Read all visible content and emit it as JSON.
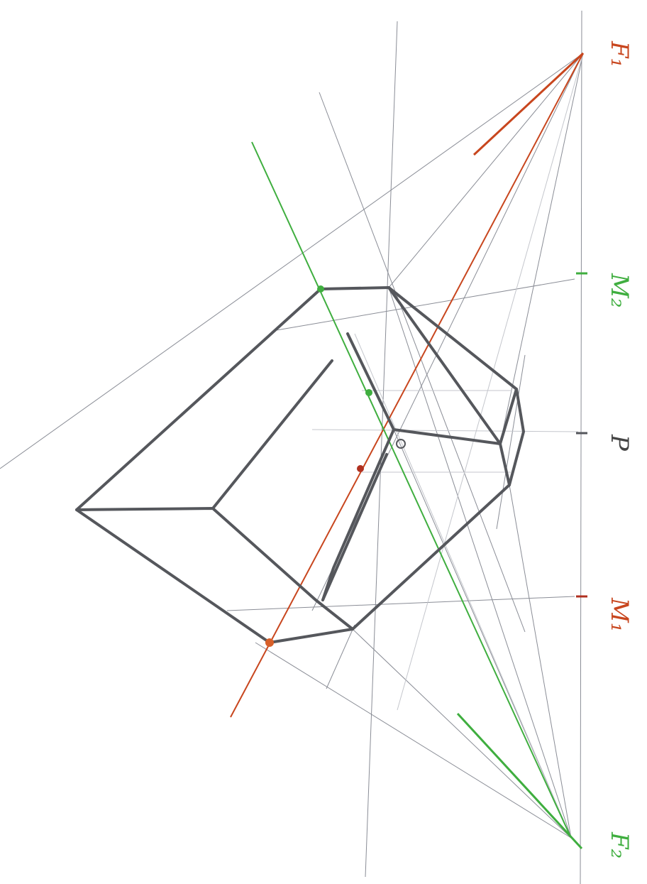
{
  "labels": {
    "f1": "F₁",
    "m2": "M₂",
    "p": "P",
    "m1": "M₁",
    "f2": "F₂"
  }
}
